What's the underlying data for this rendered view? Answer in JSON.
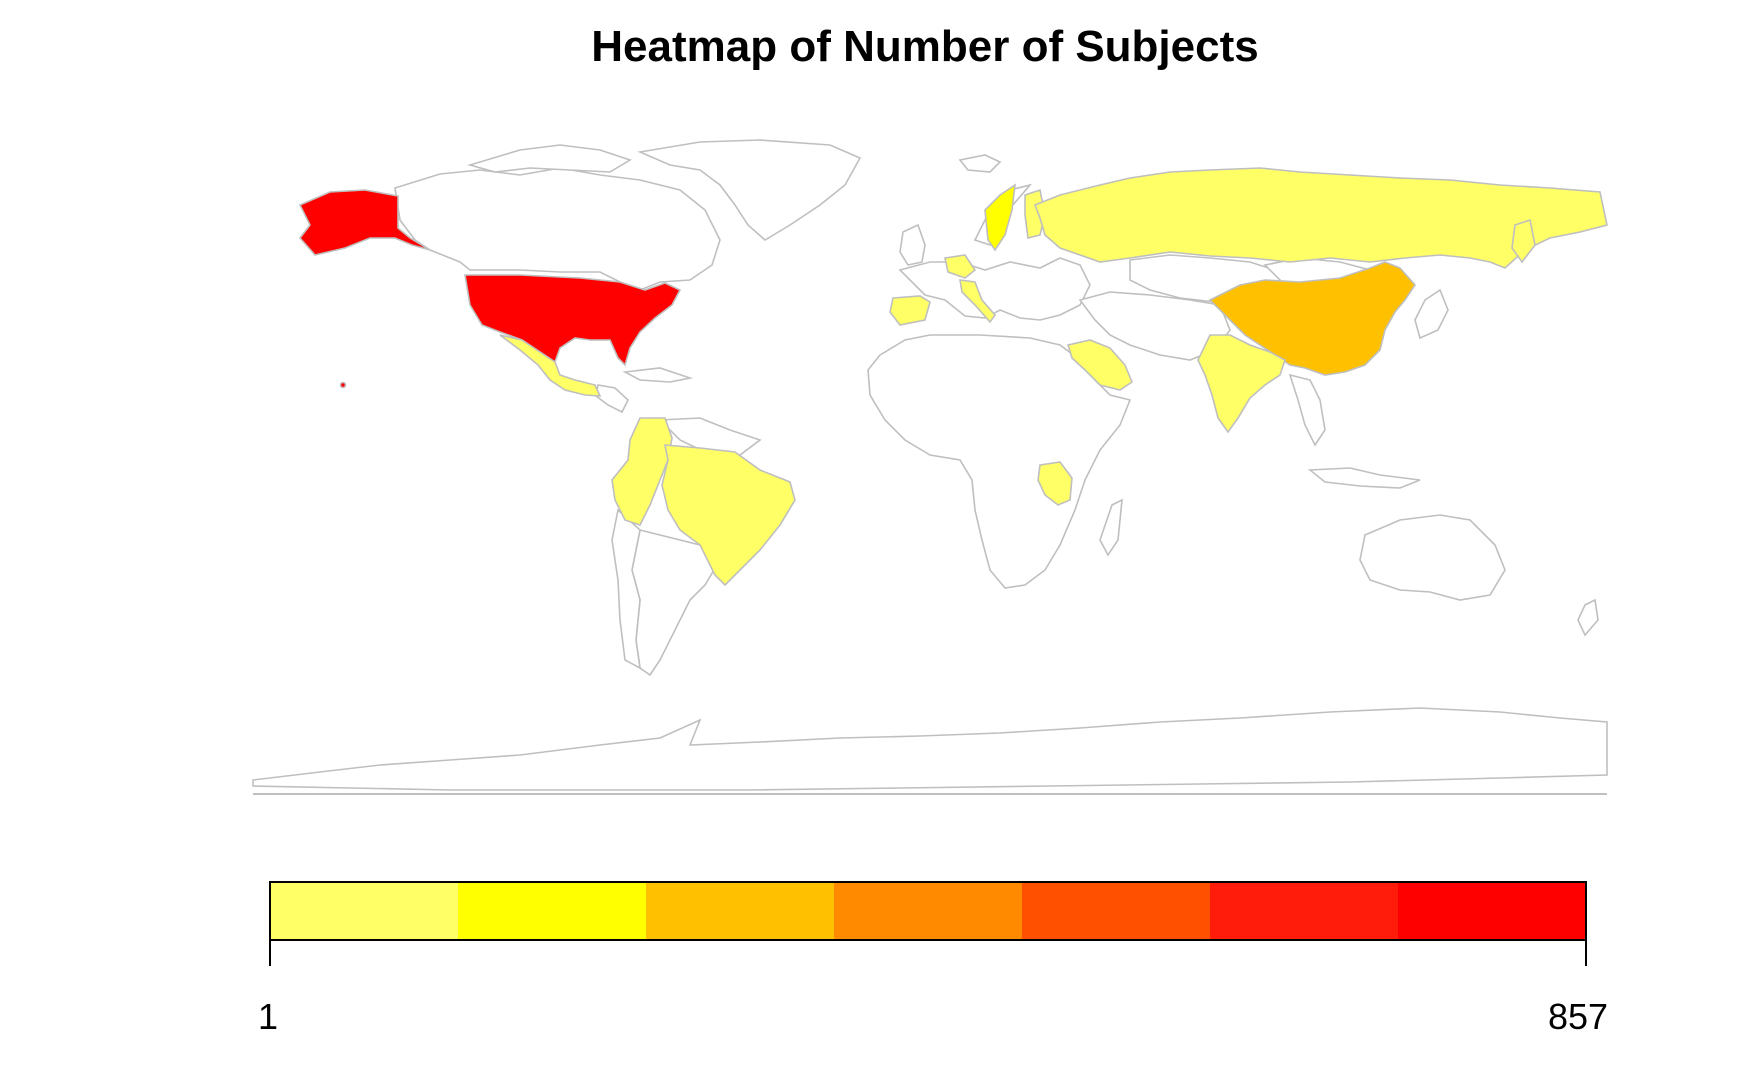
{
  "title": "Heatmap of Number of Subjects",
  "legend": {
    "min_label": "1",
    "max_label": "857",
    "colors": [
      "#FFFF66",
      "#FFFF00",
      "#FFC000",
      "#FF8A00",
      "#FF5000",
      "#FF1C0A",
      "#FF0000"
    ]
  },
  "colors": {
    "border": "#BFBFBF",
    "land": "#FFFFFF"
  },
  "highlighted_countries": [
    {
      "name": "United States",
      "class": 7
    },
    {
      "name": "China",
      "class": 3
    },
    {
      "name": "Sweden",
      "class": 2
    },
    {
      "name": "Russia",
      "class": 1
    },
    {
      "name": "Brazil",
      "class": 1
    },
    {
      "name": "Mexico",
      "class": 1
    },
    {
      "name": "Colombia",
      "class": 1
    },
    {
      "name": "Peru",
      "class": 1
    },
    {
      "name": "India",
      "class": 1
    },
    {
      "name": "Saudi Arabia",
      "class": 1
    },
    {
      "name": "Tanzania",
      "class": 1
    },
    {
      "name": "Spain",
      "class": 1
    },
    {
      "name": "Italy",
      "class": 1
    },
    {
      "name": "Finland",
      "class": 1
    }
  ]
}
